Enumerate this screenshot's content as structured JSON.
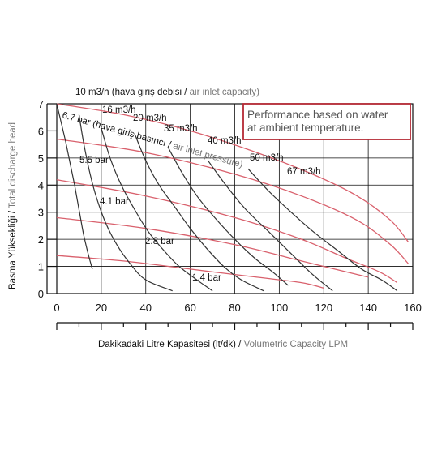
{
  "chart_data": {
    "type": "line",
    "xlabel_tr": "Dakikadaki Litre Kapasitesi (lt/dk)",
    "xlabel_sep": " / ",
    "xlabel_en": "Volumetric Capacity LPM",
    "ylabel_tr": "Basma Yüksekliği",
    "ylabel_sep": " / ",
    "ylabel_en": "Total discharge head",
    "xlim": [
      0,
      160
    ],
    "ylim": [
      0,
      7
    ],
    "x_ticks": [
      "0",
      "20",
      "40",
      "60",
      "80",
      "100",
      "120",
      "140",
      "160"
    ],
    "y_ticks": [
      "0",
      "1",
      "2",
      "3",
      "4",
      "5",
      "6",
      "7"
    ],
    "grid": true,
    "air_capacity_title_tr": "10 m3/h (hava giriş debisi",
    "air_capacity_title_sep": " / ",
    "air_capacity_title_en": "air inlet capacity)",
    "air_pressure_label_tr": "6.7 bar (hava giriş basıncı",
    "air_pressure_label_sep": " / ",
    "air_pressure_label_en": "air inlet pressure)",
    "note_line1": "Performance based on water",
    "note_line2": "at ambient temperature.",
    "colors": {
      "capacity": "#333333",
      "pressure": "#d9616d",
      "note_border": "#b52a35",
      "note_text": "#555555"
    },
    "capacity_curves": [
      {
        "label": "",
        "points": [
          [
            0,
            7.0
          ],
          [
            2,
            6.3
          ],
          [
            4,
            5.6
          ],
          [
            6,
            4.8
          ],
          [
            8,
            4.0
          ],
          [
            10,
            3.1
          ],
          [
            12,
            2.2
          ],
          [
            14,
            1.5
          ],
          [
            16,
            0.9
          ]
        ]
      },
      {
        "label": "16 m3/h",
        "points": [
          [
            10,
            6.6
          ],
          [
            12,
            5.6
          ],
          [
            15,
            4.4
          ],
          [
            18,
            3.5
          ],
          [
            22,
            2.6
          ],
          [
            27,
            1.8
          ],
          [
            33,
            1.1
          ],
          [
            40,
            0.5
          ],
          [
            52,
            0.1
          ]
        ]
      },
      {
        "label": "20 m3/h",
        "points": [
          [
            20,
            6.1
          ],
          [
            24,
            5.0
          ],
          [
            29,
            4.0
          ],
          [
            35,
            3.1
          ],
          [
            41,
            2.3
          ],
          [
            48,
            1.6
          ],
          [
            55,
            1.0
          ],
          [
            63,
            0.5
          ],
          [
            70,
            0.1
          ]
        ]
      },
      {
        "label": "35 m3/h",
        "points": [
          [
            35,
            5.9
          ],
          [
            40,
            4.9
          ],
          [
            46,
            4.0
          ],
          [
            53,
            3.2
          ],
          [
            60,
            2.4
          ],
          [
            67,
            1.7
          ],
          [
            75,
            1.0
          ],
          [
            83,
            0.5
          ],
          [
            93,
            0.1
          ]
        ]
      },
      {
        "label": "40 m3/h",
        "points": [
          [
            50,
            5.4
          ],
          [
            56,
            4.5
          ],
          [
            63,
            3.6
          ],
          [
            71,
            2.8
          ],
          [
            80,
            2.0
          ],
          [
            89,
            1.3
          ],
          [
            97,
            0.8
          ],
          [
            104,
            0.3
          ]
        ]
      },
      {
        "label": "50 m3/h",
        "points": [
          [
            68,
            4.9
          ],
          [
            76,
            4.0
          ],
          [
            85,
            3.1
          ],
          [
            95,
            2.3
          ],
          [
            105,
            1.5
          ],
          [
            115,
            0.7
          ],
          [
            124,
            0.1
          ]
        ]
      },
      {
        "label": "67 m3/h",
        "points": [
          [
            86,
            4.6
          ],
          [
            95,
            3.8
          ],
          [
            104,
            3.1
          ],
          [
            115,
            2.3
          ],
          [
            126,
            1.6
          ],
          [
            137,
            0.9
          ],
          [
            146,
            0.5
          ],
          [
            153,
            0.1
          ]
        ]
      }
    ],
    "pressure_curves": [
      {
        "label": "",
        "points": [
          [
            0,
            7.0
          ],
          [
            30,
            6.6
          ],
          [
            60,
            6.0
          ],
          [
            90,
            5.2
          ],
          [
            115,
            4.4
          ],
          [
            135,
            3.6
          ],
          [
            150,
            2.7
          ],
          [
            158,
            1.9
          ]
        ]
      },
      {
        "label": "5.5 bar",
        "points": [
          [
            0,
            5.7
          ],
          [
            40,
            5.2
          ],
          [
            80,
            4.4
          ],
          [
            110,
            3.6
          ],
          [
            135,
            2.7
          ],
          [
            150,
            1.8
          ],
          [
            158,
            1.1
          ]
        ]
      },
      {
        "label": "4.1 bar",
        "points": [
          [
            0,
            4.2
          ],
          [
            40,
            3.6
          ],
          [
            80,
            2.8
          ],
          [
            110,
            2.0
          ],
          [
            130,
            1.3
          ],
          [
            145,
            0.8
          ],
          [
            153,
            0.4
          ]
        ]
      },
      {
        "label": "2.8 bar",
        "points": [
          [
            0,
            2.8
          ],
          [
            40,
            2.4
          ],
          [
            80,
            1.8
          ],
          [
            110,
            1.2
          ],
          [
            130,
            0.8
          ],
          [
            140,
            0.6
          ]
        ]
      },
      {
        "label": "1.4 bar",
        "points": [
          [
            0,
            1.4
          ],
          [
            30,
            1.2
          ],
          [
            60,
            0.9
          ],
          [
            90,
            0.6
          ],
          [
            110,
            0.4
          ],
          [
            120,
            0.2
          ]
        ]
      }
    ]
  }
}
